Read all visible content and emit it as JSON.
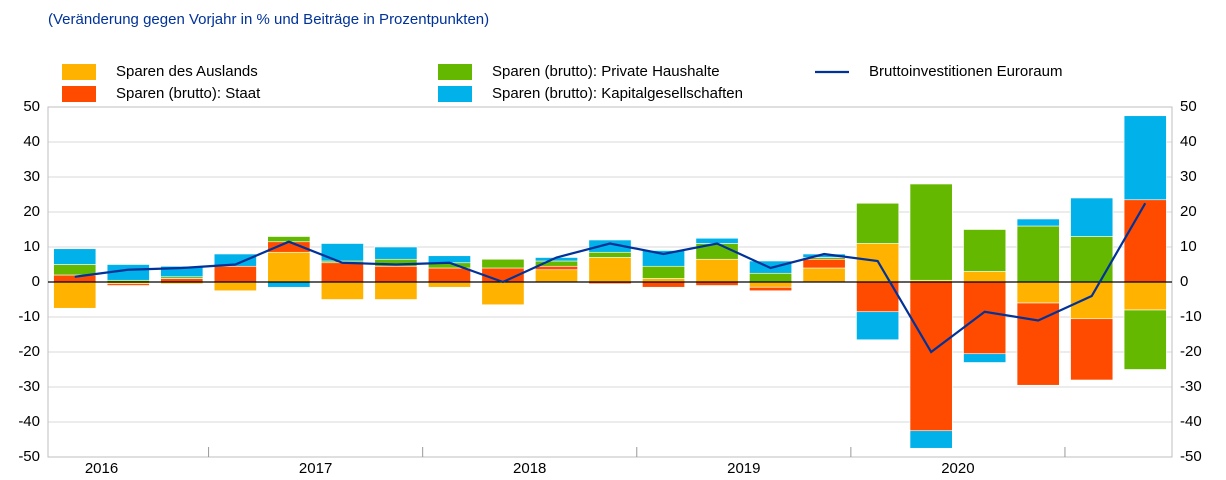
{
  "chart_data": {
    "type": "bar",
    "subtitle": "(Veränderung gegen Vorjahr in % und Beiträge in Prozentpunkten)",
    "categories": [
      "2016",
      null,
      null,
      null,
      "2017",
      null,
      null,
      null,
      "2018",
      null,
      null,
      null,
      "2019",
      null,
      null,
      null,
      "2020",
      null,
      null,
      null,
      null
    ],
    "stacked": true,
    "series": [
      {
        "name": "Sparen des Auslands",
        "color": "#ffb300",
        "values": [
          -7.5,
          -0.5,
          -0.5,
          -2.5,
          8.5,
          -5,
          -5,
          -1.5,
          -6.5,
          3.5,
          7,
          1,
          6.5,
          -1.5,
          4,
          11,
          0.5,
          3,
          -6,
          -10.5,
          -8
        ]
      },
      {
        "name": "Sparen (brutto): Staat",
        "color": "#ff4b00",
        "values": [
          2,
          -0.5,
          1,
          4.5,
          3,
          5.5,
          4.5,
          4,
          4,
          1,
          -0.5,
          -1.5,
          -1,
          -1,
          2.5,
          -8.5,
          -42.5,
          -20.5,
          -23.5,
          -17.5,
          23.5
        ]
      },
      {
        "name": "Sparen (brutto): Private Haushalte",
        "color": "#65b800",
        "values": [
          3,
          0.5,
          0.5,
          0,
          1.5,
          0.5,
          2,
          1.5,
          2.5,
          1.5,
          1.5,
          3.5,
          4.5,
          2.5,
          0.5,
          11.5,
          27.5,
          12,
          16,
          13,
          -17
        ]
      },
      {
        "name": "Sparen (brutto): Kapitalgesellschaften",
        "color": "#00b1ea",
        "values": [
          4.5,
          4.5,
          3,
          3.5,
          -1.5,
          5,
          3.5,
          2,
          0,
          1,
          3.5,
          4.5,
          1.5,
          3.5,
          1,
          -8,
          -5,
          -2.5,
          2,
          11,
          24
        ]
      },
      {
        "name": "Bruttoinvestitionen Euroraum",
        "type": "line",
        "color": "#003299",
        "values": [
          1.5,
          3.5,
          4,
          5,
          11.5,
          5.5,
          5,
          5.5,
          0,
          7,
          11,
          8,
          11,
          4,
          8,
          6,
          -20,
          -8.5,
          -11,
          -4,
          22.5
        ]
      }
    ],
    "ylim": [
      -50,
      50
    ],
    "yticks": [
      -50,
      -40,
      -30,
      -20,
      -10,
      0,
      10,
      20,
      30,
      40,
      50
    ],
    "grid": true
  }
}
